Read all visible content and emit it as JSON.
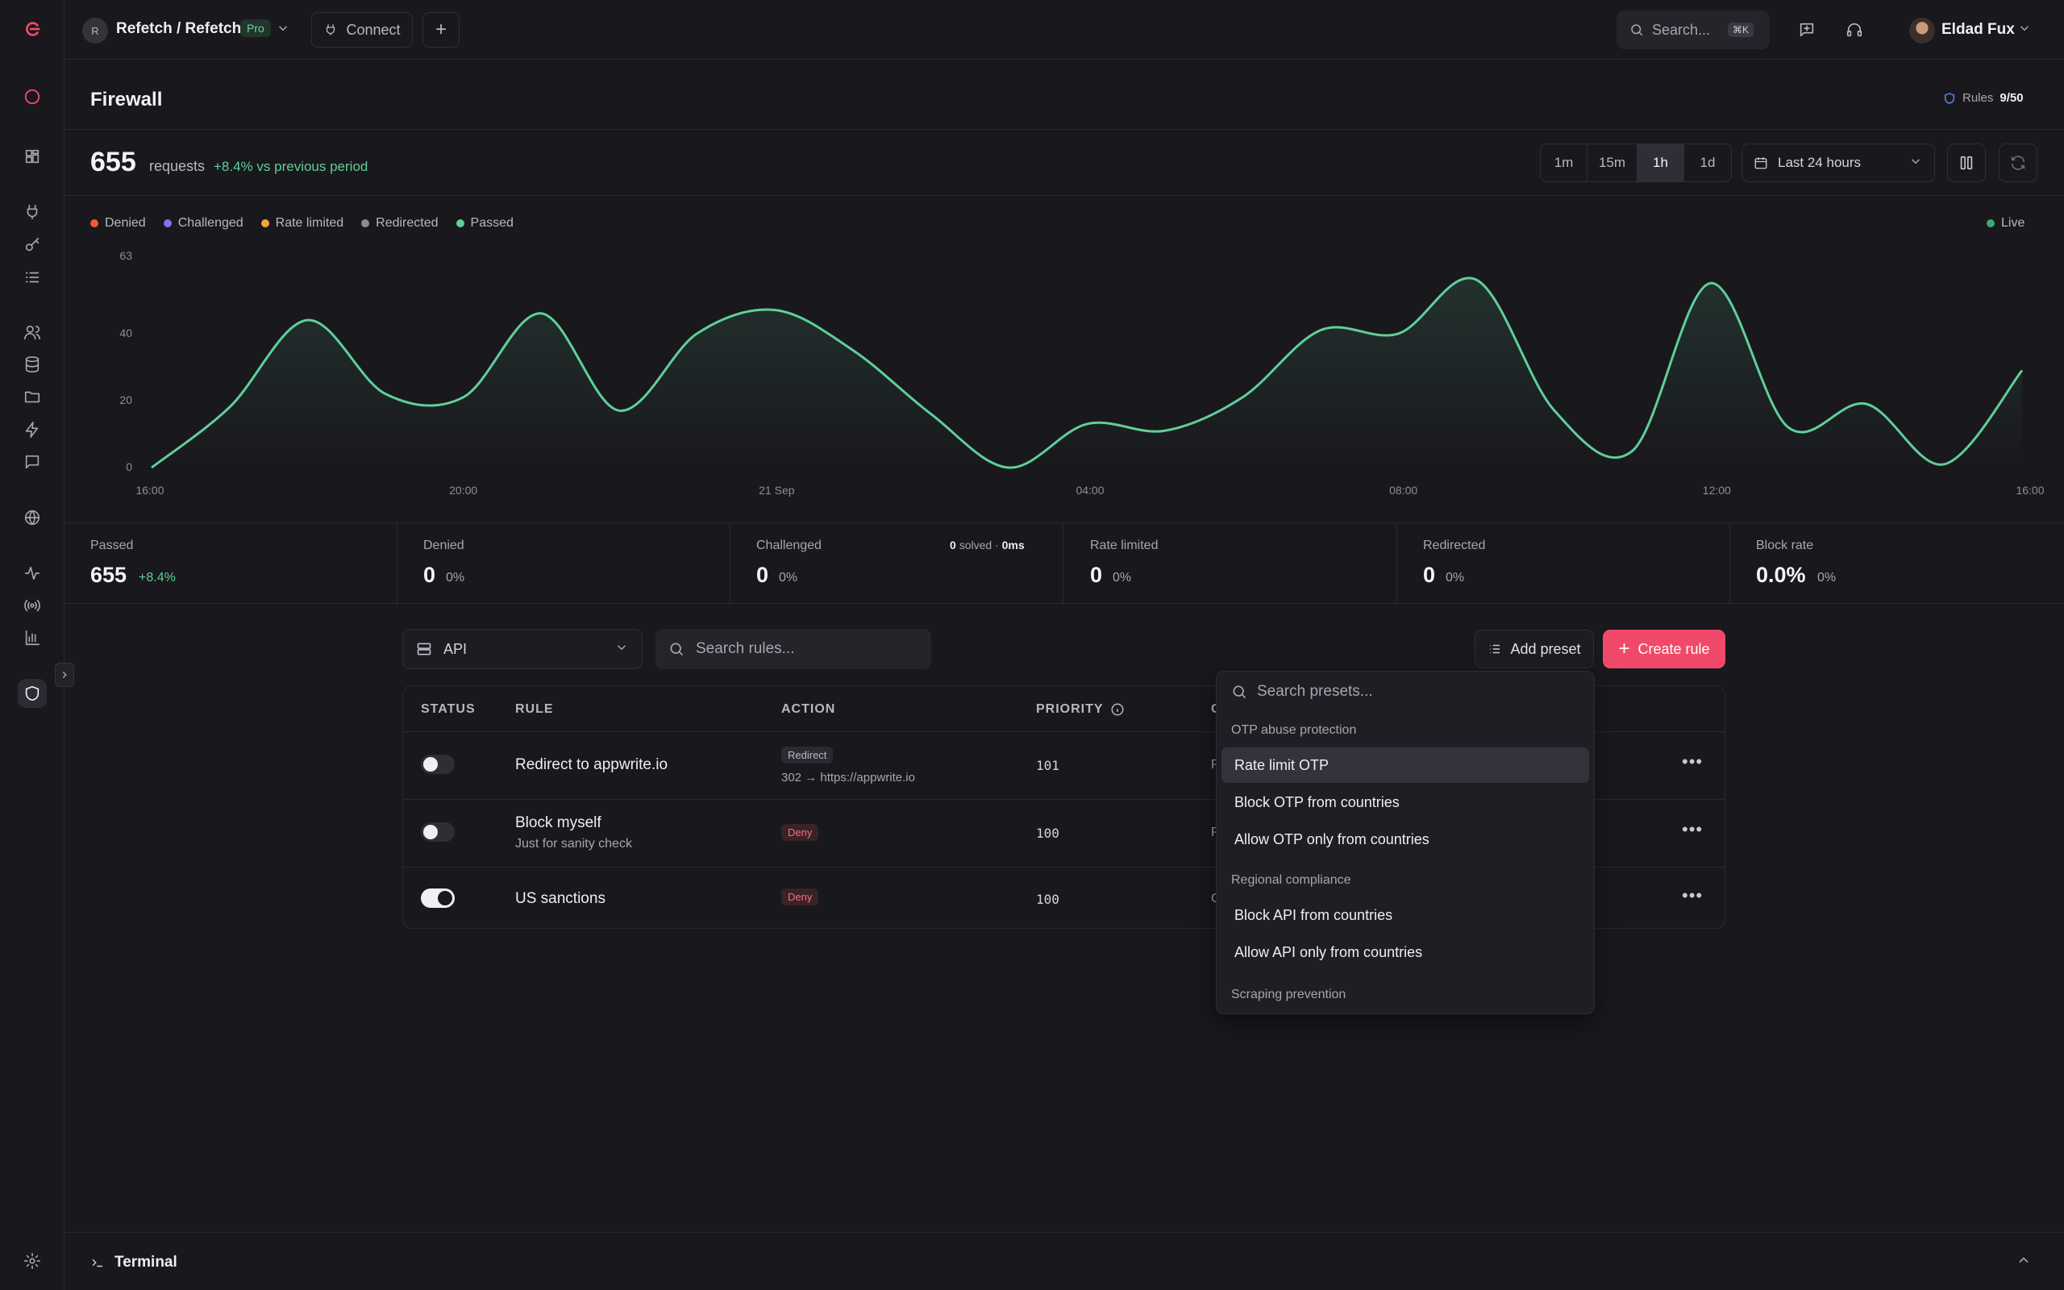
{
  "header": {
    "project_initial": "R",
    "project_name": "Refetch / Refetch",
    "plan_badge": "Pro",
    "connect_label": "Connect",
    "search_placeholder": "Search...",
    "search_shortcut": "⌘K",
    "user_name": "Eldad Fux"
  },
  "page": {
    "title": "Firewall",
    "rules_label": "Rules",
    "rules_count": "9/50"
  },
  "summary": {
    "requests": "655",
    "requests_label": "requests",
    "delta": "+8.4% vs previous period",
    "ranges": [
      "1m",
      "15m",
      "1h",
      "1d"
    ],
    "selected_range": "1h",
    "date_range": "Last 24 hours"
  },
  "legend": [
    {
      "label": "Denied",
      "color": "#f0583f"
    },
    {
      "label": "Challenged",
      "color": "#8b6cf0"
    },
    {
      "label": "Rate limited",
      "color": "#f2a53a"
    },
    {
      "label": "Redirected",
      "color": "#8c8b94"
    },
    {
      "label": "Passed",
      "color": "#5fcf98"
    }
  ],
  "live_label": "Live",
  "chart_data": {
    "type": "area",
    "x_ticks": [
      "16:00",
      "20:00",
      "21 Sep",
      "04:00",
      "08:00",
      "12:00",
      "16:00"
    ],
    "y_ticks": [
      "0",
      "20",
      "40",
      "63"
    ],
    "ylim": [
      0,
      63
    ],
    "series": [
      {
        "name": "Passed",
        "color": "#5fcf98",
        "x": [
          0,
          1,
          2,
          3,
          4,
          5,
          6,
          7,
          8,
          9,
          10,
          11,
          12,
          13,
          14,
          15,
          16,
          17,
          18,
          19,
          20,
          21,
          22,
          23,
          24
        ],
        "values": [
          0,
          18,
          44,
          22,
          21,
          46,
          17,
          40,
          47,
          35,
          16,
          0,
          13,
          11,
          21,
          41,
          40,
          56,
          17,
          5,
          55,
          12,
          19,
          1,
          29
        ]
      }
    ]
  },
  "stats": [
    {
      "label": "Passed",
      "value": "655",
      "pct": "+8.4%"
    },
    {
      "label": "Denied",
      "value": "0",
      "pct": "0%"
    },
    {
      "label": "Challenged",
      "value": "0",
      "pct": "0%"
    },
    {
      "label": "Rate limited",
      "value": "0",
      "pct": "0%"
    },
    {
      "label": "Redirected",
      "value": "0",
      "pct": "0%"
    },
    {
      "label": "Block rate",
      "value": "0.0%",
      "pct": "0%"
    }
  ],
  "challenged_extra": {
    "solved_count": "0",
    "solved_label": "solved",
    "ms": "0ms"
  },
  "toolbar": {
    "scope": "API",
    "search_placeholder": "Search rules...",
    "add_preset": "Add preset",
    "create_rule": "Create rule"
  },
  "table": {
    "headers": {
      "status": "STATUS",
      "rule": "RULE",
      "action": "ACTION",
      "priority": "PRIORITY",
      "partial": "C"
    },
    "rows": [
      {
        "name": "Redirect to appwrite.io",
        "sub": "",
        "action": "Redirect",
        "detail": "302 → https://appwrite.io",
        "priority": "101",
        "col5": "P",
        "enabled": false
      },
      {
        "name": "Block myself",
        "sub": "Just for sanity check",
        "action": "Deny",
        "detail": "",
        "priority": "100",
        "col5": "P",
        "enabled": false
      },
      {
        "name": "US sanctions",
        "sub": "",
        "action": "Deny",
        "detail": "",
        "priority": "100",
        "col5": "C",
        "enabled": true
      }
    ]
  },
  "presets": {
    "search_placeholder": "Search presets...",
    "groups": [
      {
        "label": "OTP abuse protection",
        "items": [
          "Rate limit OTP",
          "Block OTP from countries",
          "Allow OTP only from countries"
        ]
      },
      {
        "label": "Regional compliance",
        "items": [
          "Block API from countries",
          "Allow API only from countries"
        ]
      },
      {
        "label": "Scraping prevention",
        "items": []
      }
    ]
  },
  "terminal": {
    "label": "Terminal"
  }
}
